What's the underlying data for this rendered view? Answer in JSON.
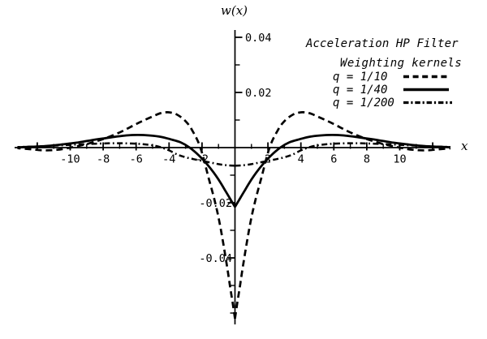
{
  "chart_data": {
    "type": "line",
    "title": "Acceleration HP Filter",
    "subtitle": "Weighting kernels",
    "xlabel": "x",
    "ylabel": "w(x)",
    "xlim": [
      -13.3,
      12.7
    ],
    "ylim": [
      -0.065,
      0.0435
    ],
    "grid": false,
    "legend_position": "upper right",
    "line_color": "#000000",
    "background_color": "#ffffff",
    "x_ticks": {
      "labeled": [
        -10,
        -8,
        -6,
        -4,
        -2,
        2,
        4,
        6,
        8,
        10
      ],
      "labels": [
        "-10",
        "-8",
        "-6",
        "-4",
        "-2",
        "2",
        "4",
        "6",
        "8",
        "10"
      ],
      "unlabeled_major": [
        -12,
        12
      ],
      "minor": [
        -11,
        -9,
        -7,
        -5,
        -3,
        -1,
        1,
        3,
        5,
        7,
        9,
        11
      ]
    },
    "y_ticks": {
      "labeled": [
        0.04,
        0.02,
        -0.02,
        -0.04
      ],
      "labels": [
        "0.04",
        "0.02",
        "-0.02",
        "-0.04"
      ],
      "minor": [
        0.03,
        0.01,
        -0.01,
        -0.03,
        -0.05,
        -0.06
      ]
    },
    "series": [
      {
        "name": "q = 1/10",
        "key": "q-1-10",
        "style": "dashed",
        "symmetric": true,
        "points_half": [
          [
            0,
            -0.062
          ],
          [
            0.15,
            -0.056
          ],
          [
            0.3,
            -0.0503
          ],
          [
            0.55,
            -0.0405
          ],
          [
            0.9,
            -0.0283
          ],
          [
            1.2,
            -0.02
          ],
          [
            1.6,
            -0.011
          ],
          [
            2.1,
            0.0
          ],
          [
            2.6,
            0.0063
          ],
          [
            3.0,
            0.0096
          ],
          [
            3.5,
            0.0119
          ],
          [
            4.0,
            0.0128
          ],
          [
            4.5,
            0.0125
          ],
          [
            5.0,
            0.0113
          ],
          [
            5.6,
            0.0097
          ],
          [
            6.2,
            0.0079
          ],
          [
            7.0,
            0.0055
          ],
          [
            8.0,
            0.0031
          ],
          [
            9.0,
            0.0013
          ],
          [
            10.0,
            0.0
          ],
          [
            10.8,
            -0.0008
          ],
          [
            11.6,
            -0.001
          ],
          [
            12.4,
            -0.0006
          ],
          [
            13.2,
            -0.0002
          ]
        ]
      },
      {
        "name": "q = 1/40",
        "key": "q-1-40",
        "style": "solid",
        "symmetric": true,
        "points_half": [
          [
            0,
            -0.0215
          ],
          [
            0.3,
            -0.0185
          ],
          [
            0.6,
            -0.0155
          ],
          [
            0.9,
            -0.0125
          ],
          [
            1.3,
            -0.009
          ],
          [
            1.7,
            -0.006
          ],
          [
            2.2,
            -0.0028
          ],
          [
            2.75,
            0.0
          ],
          [
            3.3,
            0.0019
          ],
          [
            3.9,
            0.003
          ],
          [
            4.5,
            0.0039
          ],
          [
            5.2,
            0.0044
          ],
          [
            5.9,
            0.0046
          ],
          [
            6.6,
            0.0044
          ],
          [
            7.3,
            0.0039
          ],
          [
            8.0,
            0.0033
          ],
          [
            8.8,
            0.0026
          ],
          [
            9.6,
            0.0018
          ],
          [
            10.4,
            0.0012
          ],
          [
            11.2,
            0.0007
          ],
          [
            12.0,
            0.0004
          ],
          [
            12.8,
            0.0002
          ],
          [
            13.2,
            0.0001
          ]
        ]
      },
      {
        "name": "q = 1/200",
        "key": "q-1-200",
        "style": "dashdot",
        "symmetric": true,
        "points_half": [
          [
            0,
            -0.0066
          ],
          [
            0.5,
            -0.0064
          ],
          [
            1.0,
            -0.006
          ],
          [
            1.5,
            -0.0054
          ],
          [
            2.0,
            -0.0048
          ],
          [
            2.5,
            -0.0042
          ],
          [
            3.0,
            -0.0035
          ],
          [
            3.5,
            -0.0025
          ],
          [
            4.0,
            -0.001
          ],
          [
            4.3,
            -0.0003
          ],
          [
            4.6,
            0.0003
          ],
          [
            5.2,
            0.001
          ],
          [
            6.0,
            0.0014
          ],
          [
            7.0,
            0.0016
          ],
          [
            8.0,
            0.0015
          ],
          [
            9.0,
            0.0013
          ],
          [
            10.0,
            0.001
          ],
          [
            11.0,
            0.0007
          ],
          [
            12.0,
            0.0004
          ],
          [
            13.2,
            0.0002
          ]
        ]
      }
    ]
  }
}
